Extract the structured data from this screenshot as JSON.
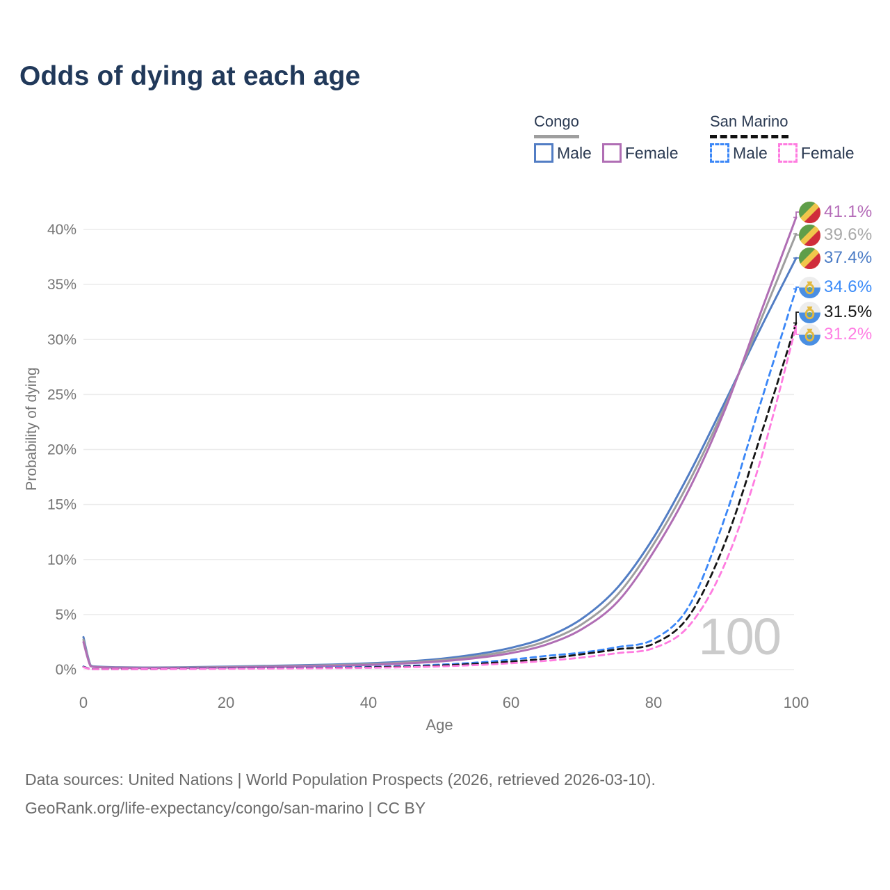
{
  "title": "Odds of dying at each age",
  "legend": {
    "groups": [
      {
        "name": "Congo",
        "line_style": "solid",
        "underline_color": "#9e9e9e",
        "items": [
          {
            "label": "Male",
            "series": "congo-male"
          },
          {
            "label": "Female",
            "series": "congo-female"
          }
        ]
      },
      {
        "name": "San Marino",
        "line_style": "dashed",
        "underline_color": "#111111",
        "items": [
          {
            "label": "Male",
            "series": "san-marino-male"
          },
          {
            "label": "Female",
            "series": "san-marino-female"
          }
        ]
      }
    ]
  },
  "chart_data": {
    "type": "line",
    "xlabel": "Age",
    "ylabel": "Probability of dying",
    "x_ticks": [
      0,
      20,
      40,
      60,
      80,
      100
    ],
    "y_ticks": [
      "0%",
      "5%",
      "10%",
      "15%",
      "20%",
      "25%",
      "30%",
      "35%",
      "40%"
    ],
    "xlim": [
      0,
      100
    ],
    "ylim": [
      0,
      42
    ],
    "grid": "horizontal",
    "watermark_age": "100",
    "ages": [
      0,
      1,
      2,
      5,
      10,
      15,
      20,
      25,
      30,
      35,
      40,
      45,
      50,
      55,
      60,
      65,
      70,
      75,
      80,
      85,
      90,
      95,
      100
    ],
    "series": [
      {
        "id": "congo-male",
        "name": "Congo — Male",
        "color": "#527dc4",
        "dashed": false,
        "values": [
          2.95,
          0.38,
          0.27,
          0.21,
          0.19,
          0.22,
          0.27,
          0.33,
          0.39,
          0.46,
          0.57,
          0.72,
          0.97,
          1.38,
          1.98,
          2.95,
          4.65,
          7.5,
          12.0,
          17.8,
          24.3,
          31.0,
          37.4
        ]
      },
      {
        "id": "congo-both",
        "name": "Congo — Both sexes",
        "color": "#9e9e9e",
        "dashed": false,
        "values": [
          2.72,
          0.34,
          0.24,
          0.19,
          0.17,
          0.19,
          0.23,
          0.28,
          0.33,
          0.4,
          0.49,
          0.63,
          0.85,
          1.2,
          1.73,
          2.6,
          4.15,
          6.85,
          11.4,
          17.1,
          23.9,
          31.7,
          39.6
        ]
      },
      {
        "id": "congo-female",
        "name": "Congo — Female",
        "color": "#b06eb4",
        "dashed": false,
        "values": [
          2.5,
          0.31,
          0.22,
          0.17,
          0.15,
          0.16,
          0.19,
          0.23,
          0.28,
          0.34,
          0.42,
          0.55,
          0.74,
          1.04,
          1.5,
          2.28,
          3.7,
          6.2,
          10.7,
          16.4,
          23.6,
          32.4,
          41.1
        ]
      },
      {
        "id": "san-marino-male",
        "name": "San Marino — Male",
        "color": "#3b87f7",
        "dashed": true,
        "values": [
          0.28,
          0.05,
          0.04,
          0.04,
          0.05,
          0.09,
          0.13,
          0.15,
          0.17,
          0.2,
          0.25,
          0.33,
          0.45,
          0.63,
          0.9,
          1.25,
          1.55,
          2.05,
          2.75,
          5.8,
          13.8,
          24.2,
          34.6
        ]
      },
      {
        "id": "san-marino-both",
        "name": "San Marino — Both sexes",
        "color": "#151515",
        "dashed": true,
        "values": [
          0.25,
          0.045,
          0.035,
          0.035,
          0.045,
          0.07,
          0.1,
          0.12,
          0.14,
          0.16,
          0.2,
          0.27,
          0.37,
          0.52,
          0.73,
          1.0,
          1.4,
          1.85,
          2.35,
          4.9,
          11.5,
          21.2,
          31.5
        ]
      },
      {
        "id": "san-marino-female",
        "name": "San Marino — Female",
        "color": "#ff7ce0",
        "dashed": true,
        "values": [
          0.22,
          0.04,
          0.03,
          0.03,
          0.04,
          0.05,
          0.07,
          0.09,
          0.11,
          0.13,
          0.16,
          0.21,
          0.29,
          0.41,
          0.58,
          0.8,
          1.1,
          1.5,
          1.95,
          4.0,
          9.6,
          19.0,
          31.2
        ]
      }
    ],
    "end_labels": [
      {
        "series": "congo-female",
        "value": "41.1%",
        "color": "#b56cb8",
        "flag": "congo"
      },
      {
        "series": "congo-both",
        "value": "39.6%",
        "color": "#a8a8a8",
        "flag": "congo"
      },
      {
        "series": "congo-male",
        "value": "37.4%",
        "color": "#4b7cc6",
        "flag": "congo"
      },
      {
        "series": "san-marino-male",
        "value": "34.6%",
        "color": "#3b8bf8",
        "flag": "san-marino"
      },
      {
        "series": "san-marino-both",
        "value": "31.5%",
        "color": "#171717",
        "flag": "san-marino"
      },
      {
        "series": "san-marino-female",
        "value": "31.2%",
        "color": "#ff7ee3",
        "flag": "san-marino"
      }
    ]
  },
  "footer": {
    "line1": "Data sources: United Nations | World Population Prospects (2026, retrieved 2026-03-10).",
    "line2": "GeoRank.org/life-expectancy/congo/san-marino | CC BY"
  }
}
